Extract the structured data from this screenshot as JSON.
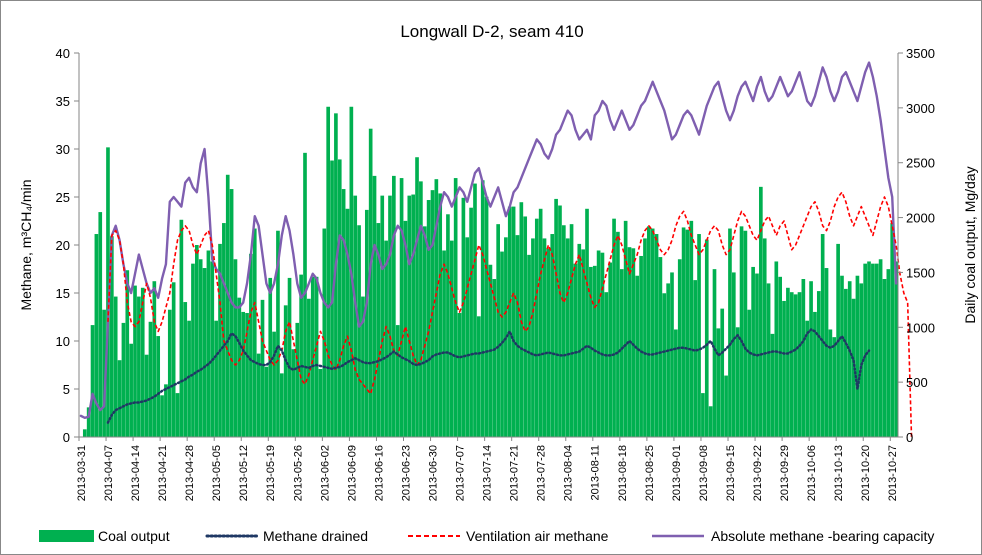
{
  "chart_data": {
    "type": "combo-bar-line",
    "title": "Longwall D-2, seam 410",
    "ylabel_left": "Methane, m³CH₄/min",
    "ylabel_right": "Daily coal output, Mg/day",
    "ylim_left": [
      0,
      40
    ],
    "ylim_right": [
      0,
      3500
    ],
    "yticks_left": [
      "0",
      "5",
      "10",
      "15",
      "20",
      "25",
      "30",
      "35",
      "40"
    ],
    "yticks_right": [
      "0",
      "500",
      "1000",
      "1500",
      "2000",
      "2500",
      "3000",
      "3500"
    ],
    "x_range": [
      "2013-03-31",
      "2013-10-28"
    ],
    "xticks": [
      "2013-03-31",
      "2013-04-07",
      "2013-04-14",
      "2013-04-21",
      "2013-04-28",
      "2013-05-05",
      "2013-05-12",
      "2013-05-19",
      "2013-05-26",
      "2013-06-02",
      "2013-06-09",
      "2013-06-16",
      "2013-06-23",
      "2013-06-30",
      "2013-07-07",
      "2013-07-14",
      "2013-07-21",
      "2013-07-28",
      "2013-08-04",
      "2013-08-11",
      "2013-08-18",
      "2013-08-25",
      "2013-09-01",
      "2013-09-08",
      "2013-09-15",
      "2013-09-22",
      "2013-09-29",
      "2013-10-06",
      "2013-10-13",
      "2013-10-20",
      "2013-10-27"
    ],
    "series": [
      {
        "name": "Coal output",
        "type": "bar",
        "axis": "right",
        "color": "#00b050",
        "start": "2013-04-01",
        "values": [
          70,
          270,
          1020,
          1850,
          2050,
          1160,
          2640,
          1830,
          1280,
          700,
          1040,
          1520,
          850,
          1380,
          1280,
          1360,
          750,
          1050,
          1420,
          920,
          380,
          480,
          1160,
          1410,
          400,
          1980,
          1230,
          1060,
          1580,
          1750,
          1620,
          1540,
          1700,
          1600,
          1060,
          1760,
          1950,
          2390,
          2260,
          1620,
          1270,
          1140,
          1130,
          1670,
          1900,
          760,
          1250,
          640,
          1450,
          960,
          1880,
          580,
          1200,
          1450,
          800,
          1040,
          1480,
          2590,
          1260,
          1460,
          1460,
          620,
          1900,
          3010,
          2520,
          2950,
          2530,
          2260,
          2080,
          3010,
          2200,
          1930,
          1280,
          2070,
          2810,
          2380,
          1950,
          2200,
          1790,
          2200,
          2380,
          1020,
          2360,
          1970,
          2200,
          2210,
          2550,
          2330,
          1920,
          2160,
          2250,
          2350,
          2220,
          1700,
          2030,
          1790,
          2360,
          1130,
          2180,
          1820,
          2090,
          2310,
          1100,
          2340,
          2190,
          1570,
          1440,
          1940,
          1690,
          1820,
          2100,
          2100,
          1840,
          2140,
          2010,
          1660,
          1810,
          1990,
          2080,
          1810,
          1720,
          1850,
          2170,
          2110,
          1930,
          1810,
          1940,
          1580,
          1760,
          1710,
          2080,
          1550,
          1560,
          1700,
          1680,
          1320,
          1590,
          1990,
          1870,
          1530,
          1970,
          1730,
          1720,
          1470,
          1650,
          1810,
          1920,
          1900,
          1850,
          1640,
          1310,
          1400,
          1500,
          980,
          1620,
          1910,
          1890,
          1970,
          1430,
          1850,
          400,
          1800,
          280,
          1530,
          990,
          1170,
          560,
          1900,
          1500,
          1000,
          1920,
          1880,
          1160,
          1550,
          1490,
          2280,
          1810,
          1400,
          940,
          1600,
          1460,
          1240,
          1360,
          1320,
          1300,
          1320,
          1440,
          1060,
          1420,
          1140,
          1330,
          1850,
          1540,
          980,
          910,
          1760,
          1470,
          1350,
          1420,
          1260,
          1470,
          1400,
          1580,
          1600,
          1580,
          1580,
          1620,
          1440,
          1530,
          1950,
          1600,
          1390,
          1320,
          1560,
          1150,
          1380
        ]
      },
      {
        "name": "Methane drained",
        "type": "line",
        "axis": "left",
        "color": "#1f3864",
        "start": "2013-04-07",
        "values": [
          1.5,
          2.3,
          2.8,
          3.0,
          3.2,
          3.4,
          3.5,
          3.6,
          3.6,
          3.7,
          3.8,
          4.0,
          4.2,
          4.5,
          4.8,
          5.0,
          5.2,
          5.4,
          5.6,
          5.8,
          6.0,
          6.3,
          6.5,
          6.8,
          7.0,
          7.3,
          7.6,
          8.0,
          8.5,
          9.0,
          9.5,
          10.0,
          10.8,
          10.5,
          9.8,
          9.0,
          8.5,
          8.0,
          7.8,
          7.6,
          7.5,
          7.5,
          7.8,
          8.5,
          9.5,
          9.0,
          8.0,
          7.2,
          7.0,
          7.2,
          7.4,
          7.3,
          7.2,
          7.4,
          7.5,
          7.4,
          7.3,
          7.2,
          7.1,
          7.2,
          7.3,
          7.5,
          7.8,
          8.0,
          8.2,
          8.0,
          7.8,
          7.7,
          7.7,
          7.8,
          7.9,
          8.1,
          8.3,
          8.6,
          8.9,
          8.6,
          8.3,
          8.1,
          7.9,
          7.6,
          7.5,
          7.6,
          7.8,
          8.0,
          8.4,
          8.6,
          8.7,
          8.8,
          8.8,
          8.6,
          8.4,
          8.3,
          8.4,
          8.5,
          8.6,
          8.7,
          8.7,
          8.8,
          8.9,
          9.0,
          9.1,
          9.4,
          9.8,
          10.3,
          11.0,
          10.0,
          9.5,
          9.2,
          9.0,
          8.8,
          8.6,
          8.5,
          8.6,
          8.7,
          8.8,
          8.7,
          8.6,
          8.5,
          8.5,
          8.6,
          8.7,
          8.8,
          8.9,
          9.2,
          9.5,
          9.3,
          9.0,
          8.8,
          8.6,
          8.5,
          8.5,
          8.6,
          8.8,
          9.2,
          9.6,
          10.0,
          9.6,
          9.2,
          8.9,
          8.7,
          8.6,
          8.6,
          8.7,
          8.8,
          8.9,
          9.0,
          9.1,
          9.2,
          9.3,
          9.3,
          9.2,
          9.1,
          9.0,
          9.1,
          9.3,
          9.6,
          10.0,
          9.2,
          8.5,
          8.8,
          9.2,
          9.6,
          10.2,
          10.6,
          10.0,
          9.2,
          8.8,
          8.6,
          8.5,
          8.6,
          8.7,
          8.8,
          8.9,
          8.9,
          8.8,
          8.7,
          8.7,
          8.9,
          9.1,
          9.5,
          10.0,
          10.8,
          11.2,
          11.0,
          10.5,
          10.0,
          9.5,
          9.3,
          9.5,
          10.0,
          10.5,
          9.8,
          9.0,
          8.0,
          5.0,
          7.5,
          8.5,
          9.0
        ]
      },
      {
        "name": "Ventilation air methane",
        "type": "line",
        "axis": "left",
        "color": "#ff0000",
        "start": "2013-04-07",
        "values": [
          12.0,
          21.0,
          21.5,
          20.5,
          18.0,
          14.0,
          12.0,
          11.5,
          12.0,
          14.0,
          16.0,
          14.5,
          12.0,
          11.0,
          12.0,
          13.5,
          15.0,
          18.0,
          20.5,
          21.5,
          22.0,
          21.5,
          20.0,
          19.0,
          20.0,
          21.0,
          21.5,
          20.0,
          17.0,
          14.0,
          10.0,
          9.0,
          8.0,
          7.5,
          8.0,
          9.0,
          11.0,
          13.0,
          14.0,
          12.0,
          10.0,
          9.0,
          8.0,
          7.5,
          8.0,
          9.0,
          11.0,
          12.0,
          10.0,
          8.0,
          6.0,
          5.5,
          6.5,
          8.0,
          9.5,
          11.0,
          10.0,
          8.5,
          7.5,
          7.0,
          8.0,
          9.5,
          10.5,
          9.0,
          7.0,
          6.0,
          5.5,
          5.0,
          4.5,
          6.0,
          8.0,
          10.0,
          11.5,
          10.5,
          9.0,
          8.5,
          10.0,
          11.5,
          10.0,
          8.5,
          7.5,
          8.0,
          9.5,
          11.0,
          13.0,
          15.0,
          17.0,
          18.0,
          17.0,
          15.5,
          14.0,
          13.0,
          14.0,
          15.5,
          17.0,
          18.5,
          20.0,
          19.0,
          17.5,
          16.0,
          14.5,
          13.0,
          12.5,
          13.0,
          14.0,
          15.0,
          14.0,
          12.0,
          11.0,
          11.5,
          13.0,
          15.0,
          17.0,
          18.5,
          20.0,
          19.0,
          17.0,
          15.0,
          14.0,
          15.0,
          16.5,
          18.0,
          19.0,
          17.5,
          16.0,
          14.5,
          13.5,
          14.0,
          15.5,
          17.0,
          18.5,
          20.0,
          21.0,
          20.0,
          18.5,
          17.0,
          18.0,
          19.0,
          20.5,
          21.5,
          22.0,
          21.5,
          20.5,
          19.5,
          19.0,
          19.5,
          20.5,
          22.0,
          23.0,
          23.5,
          22.5,
          21.0,
          20.0,
          19.0,
          19.5,
          20.5,
          21.5,
          22.0,
          21.5,
          20.0,
          19.0,
          19.5,
          21.0,
          22.5,
          23.5,
          23.0,
          22.0,
          21.0,
          20.5,
          21.5,
          22.5,
          23.0,
          22.0,
          21.0,
          22.0,
          22.5,
          21.0,
          19.5,
          20.0,
          21.0,
          22.0,
          23.0,
          24.0,
          24.5,
          23.5,
          22.0,
          21.5,
          22.5,
          24.0,
          25.0,
          25.5,
          24.5,
          23.0,
          22.0,
          23.0,
          24.0,
          23.0,
          22.0,
          21.0,
          22.5,
          24.0,
          25.0,
          24.0,
          22.0,
          20.0,
          17.0,
          15.0,
          14.0,
          0.0
        ]
      },
      {
        "name": "Absolute methane -bearing capacity",
        "type": "line",
        "axis": "left",
        "color": "#7f5fb0",
        "start": "2013-03-31",
        "values": [
          2.2,
          2.0,
          2.1,
          4.5,
          3.5,
          2.8,
          3.2,
          12.0,
          21.0,
          22.0,
          20.5,
          18.0,
          16.0,
          15.0,
          17.0,
          19.0,
          17.5,
          16.0,
          15.0,
          15.5,
          14.5,
          16.5,
          18.0,
          24.5,
          25.0,
          24.5,
          24.0,
          26.5,
          27.0,
          26.0,
          25.5,
          28.5,
          30.0,
          25.0,
          18.5,
          17.5,
          17.0,
          16.0,
          15.0,
          14.0,
          13.5,
          13.5,
          14.0,
          16.0,
          19.0,
          23.0,
          22.0,
          19.0,
          16.0,
          15.0,
          16.0,
          18.0,
          21.0,
          23.0,
          21.5,
          19.0,
          16.0,
          14.5,
          15.0,
          16.0,
          17.0,
          16.5,
          15.0,
          14.0,
          13.5,
          14.0,
          18.0,
          21.0,
          20.5,
          19.0,
          17.0,
          14.0,
          11.5,
          12.0,
          14.0,
          18.0,
          20.0,
          19.0,
          17.5,
          18.0,
          19.0,
          21.0,
          22.0,
          21.5,
          20.0,
          18.0,
          19.0,
          20.5,
          22.0,
          21.0,
          19.5,
          20.0,
          22.0,
          24.0,
          25.5,
          25.0,
          24.0,
          25.0,
          26.0,
          25.5,
          24.5,
          26.0,
          27.5,
          28.0,
          26.5,
          25.0,
          24.0,
          25.0,
          26.0,
          24.5,
          23.0,
          24.0,
          25.5,
          26.0,
          27.0,
          28.0,
          29.0,
          30.0,
          31.0,
          30.5,
          29.5,
          29.0,
          30.0,
          31.5,
          32.0,
          33.0,
          34.0,
          33.5,
          32.0,
          31.0,
          31.5,
          32.0,
          31.0,
          33.5,
          34.0,
          35.0,
          34.5,
          33.0,
          32.0,
          33.0,
          34.0,
          33.0,
          32.0,
          32.5,
          33.5,
          34.5,
          35.0,
          36.0,
          37.0,
          36.0,
          35.0,
          34.0,
          32.5,
          31.0,
          31.5,
          32.5,
          33.5,
          34.0,
          33.5,
          32.5,
          31.5,
          33.0,
          34.5,
          35.5,
          36.5,
          37.0,
          35.5,
          34.0,
          33.0,
          34.0,
          35.5,
          36.5,
          37.0,
          36.0,
          35.0,
          36.5,
          37.5,
          36.0,
          35.0,
          35.5,
          36.5,
          37.5,
          36.5,
          35.5,
          36.0,
          37.0,
          38.0,
          36.5,
          35.0,
          34.5,
          35.5,
          37.0,
          38.5,
          37.5,
          36.0,
          35.0,
          36.0,
          37.5,
          38.0,
          37.0,
          36.0,
          35.0,
          36.5,
          38.0,
          39.0,
          37.5,
          35.5,
          33.0,
          30.0,
          27.0,
          25.0,
          16.0
        ]
      }
    ],
    "legend_position": "bottom",
    "grid": false
  }
}
